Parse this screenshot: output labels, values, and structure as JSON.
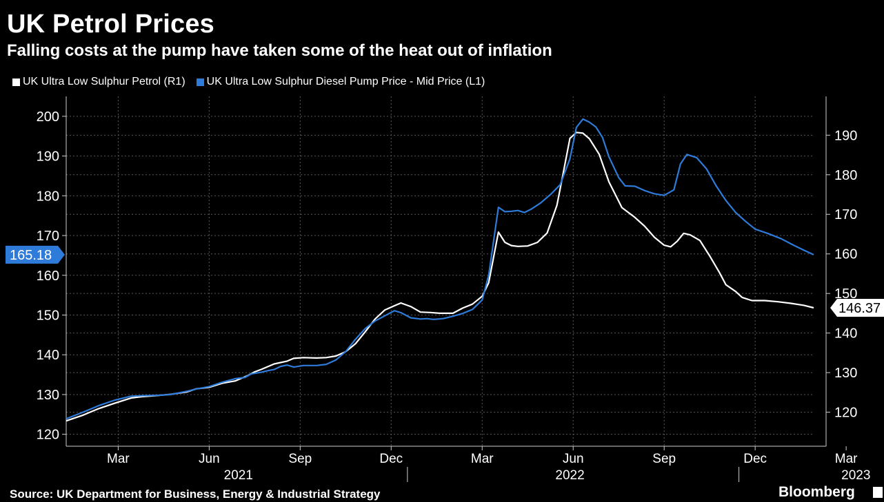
{
  "chart_data": {
    "type": "line",
    "title": "UK Petrol Prices",
    "subtitle": "Falling costs at the pump have taken some of the heat out of inflation",
    "source": "Source: UK Department for Business, Energy & Industrial Strategy",
    "brand": "Bloomberg",
    "x_ticks": [
      "Mar",
      "Jun",
      "Sep",
      "Dec",
      "Mar",
      "Jun",
      "Sep",
      "Dec",
      "Mar"
    ],
    "year_labels": [
      "2021",
      "2022",
      "2023"
    ],
    "left_axis": {
      "range": [
        117,
        205
      ],
      "ticks": [
        120,
        130,
        140,
        150,
        160,
        170,
        180,
        190,
        200
      ]
    },
    "right_axis": {
      "range": [
        111.4,
        199.8
      ],
      "ticks": [
        120,
        130,
        140,
        150,
        160,
        170,
        180,
        190
      ]
    },
    "grid": true,
    "legend_position": "top-left",
    "series": [
      {
        "name": "UK Ultra Low Sulphur Petrol (R1)",
        "axis": "right",
        "color": "#ffffff",
        "last_value_label": "146.37",
        "values": [
          [
            0,
            117.8
          ],
          [
            5,
            119.2
          ],
          [
            10,
            120.9
          ],
          [
            15,
            122.3
          ],
          [
            20,
            123.6
          ],
          [
            23,
            123.9
          ],
          [
            28,
            124.2
          ],
          [
            32,
            124.5
          ],
          [
            37,
            125.1
          ],
          [
            40,
            125.9
          ],
          [
            44,
            126.3
          ],
          [
            48,
            127.3
          ],
          [
            52,
            127.9
          ],
          [
            56,
            129.3
          ],
          [
            58,
            130.2
          ],
          [
            60,
            130.8
          ],
          [
            62,
            131.5
          ],
          [
            64,
            132.2
          ],
          [
            68,
            132.9
          ],
          [
            70,
            133.6
          ],
          [
            73,
            133.8
          ],
          [
            77,
            133.7
          ],
          [
            80,
            133.8
          ],
          [
            83,
            134.2
          ],
          [
            86,
            135.3
          ],
          [
            89,
            137.3
          ],
          [
            92,
            140.3
          ],
          [
            95,
            143.5
          ],
          [
            98,
            145.8
          ],
          [
            101,
            146.9
          ],
          [
            103,
            147.6
          ],
          [
            106,
            146.7
          ],
          [
            109,
            145.3
          ],
          [
            112,
            145.2
          ],
          [
            115,
            145.0
          ],
          [
            119,
            145.0
          ],
          [
            122,
            146.3
          ],
          [
            125,
            147.3
          ],
          [
            128,
            149.3
          ],
          [
            130,
            152.7
          ],
          [
            133,
            165.5
          ],
          [
            135,
            162.9
          ],
          [
            137,
            162.1
          ],
          [
            139,
            161.9
          ],
          [
            142,
            162.0
          ],
          [
            145,
            162.9
          ],
          [
            148,
            165.3
          ],
          [
            151,
            172.3
          ],
          [
            153,
            180.7
          ],
          [
            155,
            189.2
          ],
          [
            157,
            190.7
          ],
          [
            159,
            190.5
          ],
          [
            161,
            189.1
          ],
          [
            164,
            185.2
          ],
          [
            167,
            178.2
          ],
          [
            171,
            171.7
          ],
          [
            175,
            169.2
          ],
          [
            178,
            167.0
          ],
          [
            181,
            164.2
          ],
          [
            184,
            162.2
          ],
          [
            186,
            161.8
          ],
          [
            188,
            163.2
          ],
          [
            190,
            165.2
          ],
          [
            192,
            164.8
          ],
          [
            195,
            163.4
          ],
          [
            198,
            159.5
          ],
          [
            201,
            155.3
          ],
          [
            203,
            152.2
          ],
          [
            206,
            150.5
          ],
          [
            208,
            149.0
          ],
          [
            211,
            148.2
          ],
          [
            215,
            148.2
          ],
          [
            219,
            147.9
          ],
          [
            223,
            147.5
          ],
          [
            227,
            147.0
          ],
          [
            230,
            146.37
          ]
        ]
      },
      {
        "name": "UK Ultra Low Sulphur Diesel Pump Price - Mid Price (L1)",
        "axis": "left",
        "color": "#2f7bd9",
        "last_value_label": "165.18",
        "values": [
          [
            0,
            123.9
          ],
          [
            5,
            125.5
          ],
          [
            10,
            127.2
          ],
          [
            15,
            128.6
          ],
          [
            20,
            129.6
          ],
          [
            23,
            129.7
          ],
          [
            28,
            129.8
          ],
          [
            32,
            130.0
          ],
          [
            37,
            130.8
          ],
          [
            40,
            131.4
          ],
          [
            44,
            132.0
          ],
          [
            48,
            133.1
          ],
          [
            52,
            134.0
          ],
          [
            55,
            134.3
          ],
          [
            57,
            135.2
          ],
          [
            60,
            135.6
          ],
          [
            62,
            136.0
          ],
          [
            64,
            136.3
          ],
          [
            66,
            137.1
          ],
          [
            68,
            137.4
          ],
          [
            70,
            136.9
          ],
          [
            73,
            137.3
          ],
          [
            77,
            137.3
          ],
          [
            80,
            137.6
          ],
          [
            83,
            138.7
          ],
          [
            86,
            140.8
          ],
          [
            89,
            143.9
          ],
          [
            92,
            146.6
          ],
          [
            95,
            148.5
          ],
          [
            98,
            149.8
          ],
          [
            101,
            151.1
          ],
          [
            103,
            150.6
          ],
          [
            106,
            149.3
          ],
          [
            109,
            149.0
          ],
          [
            111,
            149.1
          ],
          [
            113,
            148.9
          ],
          [
            116,
            149.1
          ],
          [
            119,
            149.7
          ],
          [
            122,
            150.4
          ],
          [
            125,
            151.4
          ],
          [
            128,
            153.8
          ],
          [
            130,
            160.0
          ],
          [
            133,
            177.1
          ],
          [
            135,
            176.0
          ],
          [
            137,
            176.1
          ],
          [
            139,
            176.3
          ],
          [
            141,
            175.8
          ],
          [
            143,
            176.6
          ],
          [
            146,
            178.2
          ],
          [
            149,
            180.3
          ],
          [
            152,
            182.8
          ],
          [
            155,
            189.3
          ],
          [
            157,
            197.2
          ],
          [
            159,
            199.3
          ],
          [
            161,
            198.5
          ],
          [
            163,
            197.3
          ],
          [
            165,
            194.7
          ],
          [
            167,
            189.8
          ],
          [
            170,
            184.6
          ],
          [
            172,
            182.5
          ],
          [
            175,
            182.4
          ],
          [
            178,
            181.3
          ],
          [
            181,
            180.5
          ],
          [
            184,
            180.1
          ],
          [
            187,
            181.5
          ],
          [
            189,
            188.0
          ],
          [
            191,
            190.4
          ],
          [
            194,
            189.6
          ],
          [
            197,
            186.8
          ],
          [
            200,
            182.5
          ],
          [
            203,
            178.8
          ],
          [
            206,
            175.8
          ],
          [
            209,
            173.6
          ],
          [
            212,
            171.6
          ],
          [
            216,
            170.5
          ],
          [
            220,
            169.2
          ],
          [
            224,
            167.5
          ],
          [
            227,
            166.3
          ],
          [
            230,
            165.18
          ]
        ]
      }
    ]
  }
}
